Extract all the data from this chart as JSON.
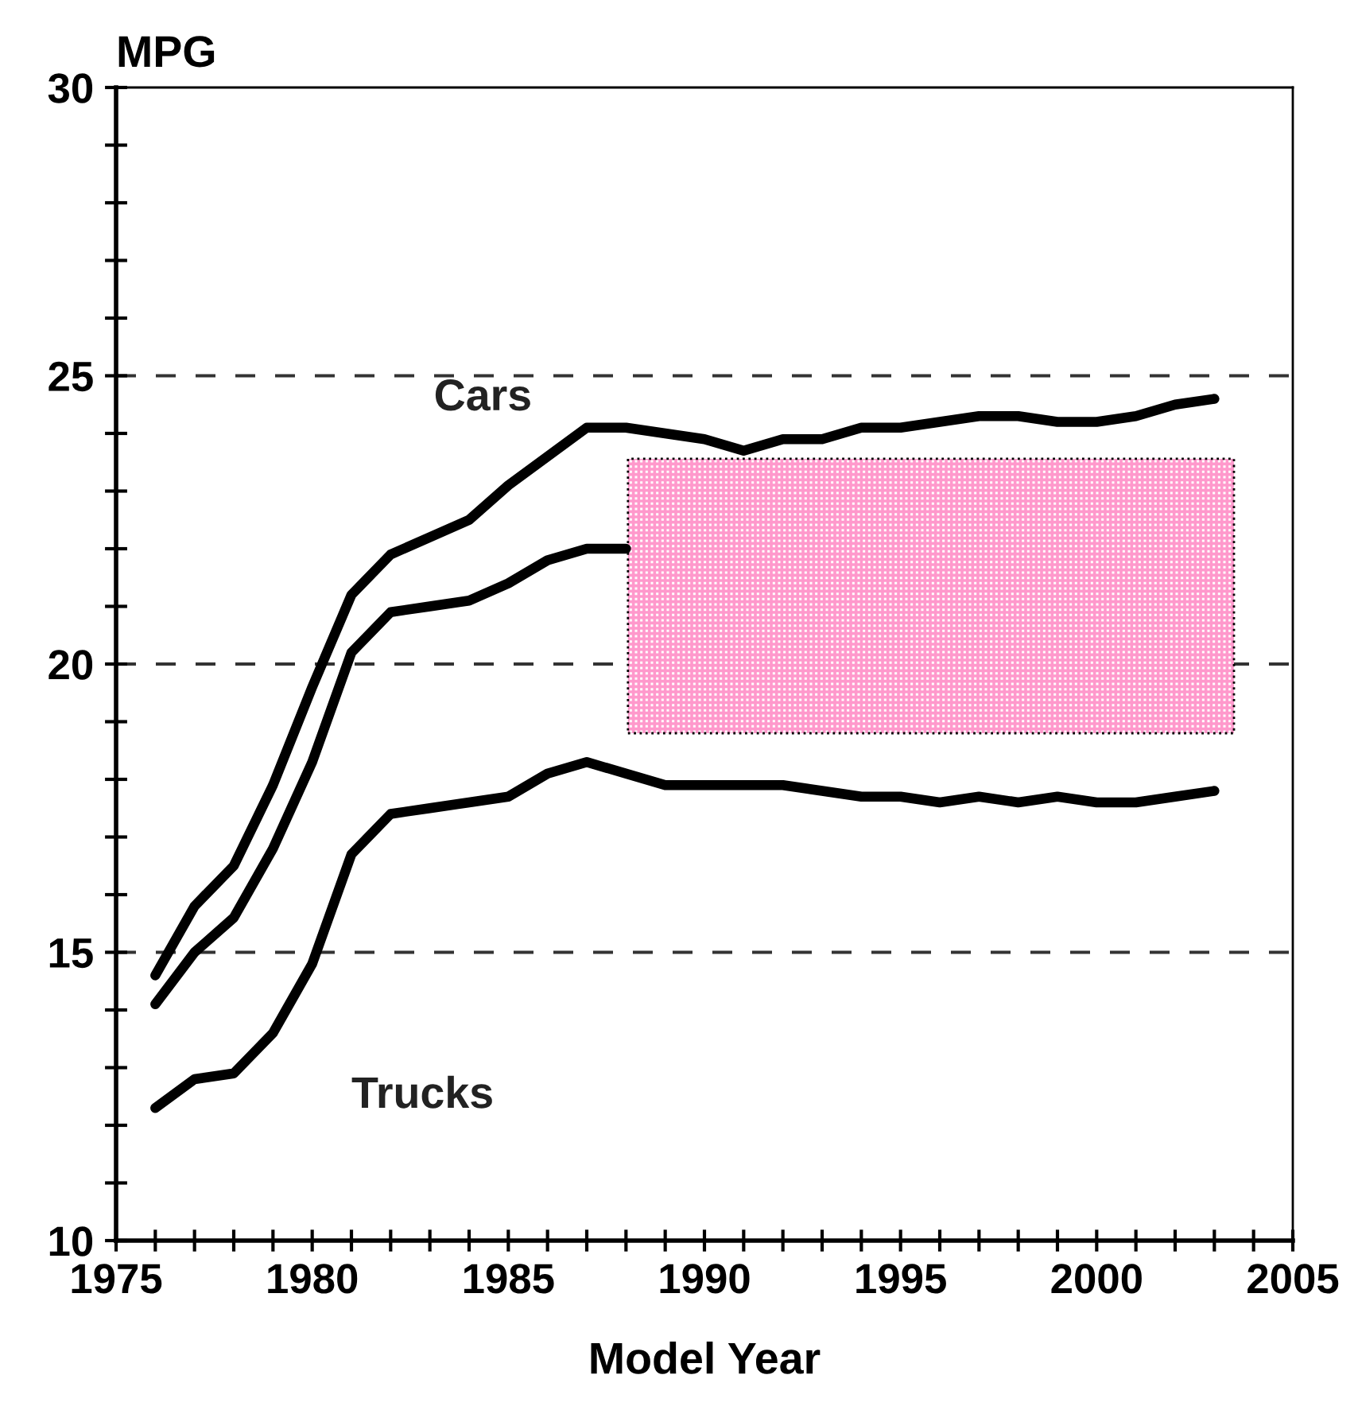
{
  "chart_data": {
    "type": "line",
    "ylabel": "MPG",
    "xlabel": "Model Year",
    "x": [
      1976,
      1977,
      1978,
      1979,
      1980,
      1981,
      1982,
      1983,
      1984,
      1985,
      1986,
      1987,
      1988,
      1989,
      1990,
      1991,
      1992,
      1993,
      1994,
      1995,
      1996,
      1997,
      1998,
      1999,
      2000,
      2001,
      2002,
      2003
    ],
    "series": [
      {
        "name": "Cars",
        "color": "#000000",
        "values": [
          14.6,
          15.8,
          16.5,
          17.9,
          19.6,
          21.2,
          21.9,
          22.2,
          22.5,
          23.1,
          23.6,
          24.1,
          24.1,
          24.0,
          23.9,
          23.7,
          23.9,
          23.9,
          24.1,
          24.1,
          24.2,
          24.3,
          24.3,
          24.2,
          24.2,
          24.3,
          24.5,
          24.6
        ]
      },
      {
        "color": "#000000",
        "values": [
          14.1,
          15.0,
          15.6,
          16.8,
          18.3,
          20.2,
          20.9,
          21.0,
          21.1,
          21.4,
          21.8,
          22.0,
          22.0,
          null,
          null,
          null,
          null,
          null,
          null,
          null,
          null,
          null,
          null,
          null,
          null,
          null,
          null,
          null
        ]
      },
      {
        "name": "Trucks",
        "color": "#000000",
        "values": [
          12.3,
          12.8,
          12.9,
          13.6,
          14.8,
          16.7,
          17.4,
          17.5,
          17.6,
          17.7,
          18.1,
          18.3,
          18.1,
          17.9,
          17.9,
          17.9,
          17.9,
          17.8,
          17.7,
          17.7,
          17.6,
          17.7,
          17.6,
          17.7,
          17.6,
          17.6,
          17.7,
          17.8
        ]
      }
    ],
    "xlim": [
      1975,
      2005
    ],
    "xticks": [
      1975,
      {
        "value": 1976,
        "label": null
      },
      {
        "value": 1977,
        "label": null
      },
      {
        "value": 1978,
        "label": null
      },
      {
        "value": 1979,
        "label": null
      },
      1980,
      {
        "value": 1981,
        "label": null
      },
      {
        "value": 1982,
        "label": null
      },
      {
        "value": 1983,
        "label": null
      },
      {
        "value": 1984,
        "label": null
      },
      1985,
      {
        "value": 1986,
        "label": null
      },
      {
        "value": 1987,
        "label": null
      },
      {
        "value": 1988,
        "label": null
      },
      {
        "value": 1989,
        "label": null
      },
      1990,
      {
        "value": 1991,
        "label": null
      },
      {
        "value": 1992,
        "label": null
      },
      {
        "value": 1993,
        "label": null
      },
      {
        "value": 1994,
        "label": null
      },
      1995,
      {
        "value": 1996,
        "label": null
      },
      {
        "value": 1997,
        "label": null
      },
      {
        "value": 1998,
        "label": null
      },
      {
        "value": 1999,
        "label": null
      },
      2000,
      {
        "value": 2001,
        "label": null
      },
      {
        "value": 2002,
        "label": null
      },
      {
        "value": 2003,
        "label": null
      },
      {
        "value": 2004,
        "label": null
      },
      2005
    ],
    "ylim": [
      10,
      30
    ],
    "yticks": [
      10,
      {
        "value": 11,
        "label": null
      },
      {
        "value": 12,
        "label": null
      },
      {
        "value": 13,
        "label": null
      },
      {
        "value": 14,
        "label": null
      },
      15,
      {
        "value": 16,
        "label": null
      },
      {
        "value": 17,
        "label": null
      },
      {
        "value": 18,
        "label": null
      },
      {
        "value": 19,
        "label": null
      },
      20,
      {
        "value": 21,
        "label": null
      },
      {
        "value": 22,
        "label": null
      },
      {
        "value": 23,
        "label": null
      },
      {
        "value": 24,
        "label": null
      },
      25,
      {
        "value": 26,
        "label": null
      },
      {
        "value": 27,
        "label": null
      },
      {
        "value": 28,
        "label": null
      },
      {
        "value": 29,
        "label": null
      },
      30
    ],
    "grid": "y",
    "line_style": "solid",
    "legend": false
  }
}
